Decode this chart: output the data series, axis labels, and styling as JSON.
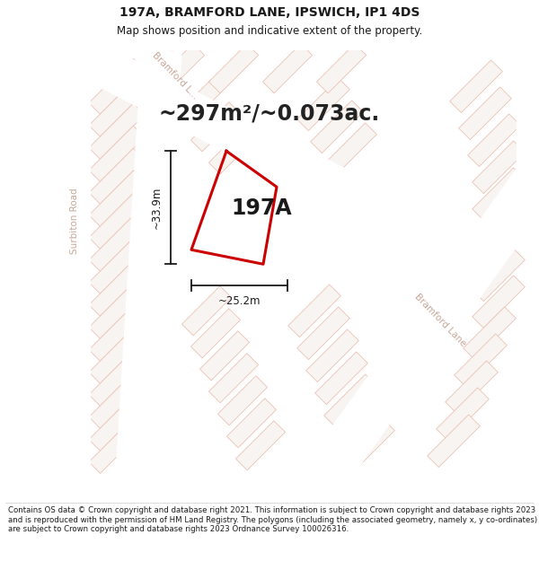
{
  "title_line1": "197A, BRAMFORD LANE, IPSWICH, IP1 4DS",
  "title_line2": "Map shows position and indicative extent of the property.",
  "area_text": "~297m²/~0.073ac.",
  "label_197A": "197A",
  "dim_height": "~33.9m",
  "dim_width": "~25.2m",
  "footer_text": "Contains OS data © Crown copyright and database right 2021. This information is subject to Crown copyright and database rights 2023 and is reproduced with the permission of HM Land Registry. The polygons (including the associated geometry, namely x, y co-ordinates) are subject to Crown copyright and database rights 2023 Ordnance Survey 100026316.",
  "bg_color": "#ffffff",
  "map_bg_color": "#f2ede9",
  "road_color": "#ffffff",
  "building_fill": "#f8f4f1",
  "building_edge": "#e8b8a8",
  "road_label_color": "#c8a898",
  "plot_outline_color": "#cc0000",
  "dim_line_color": "#1a1a1a",
  "title_color": "#1a1a1a",
  "footer_color": "#1a1a1a",
  "surbiton_road_label": "Surbiton Road",
  "bramford_lane_label_top": "Bramford L...",
  "bramford_lane_label_right": "Bramford Lane"
}
